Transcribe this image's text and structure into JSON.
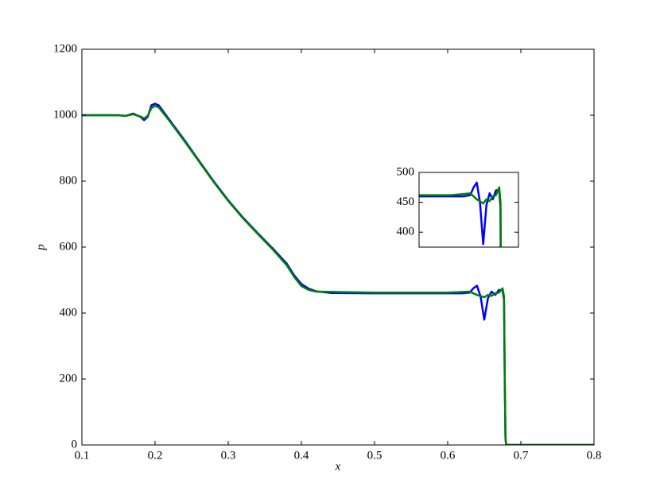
{
  "chart_data": {
    "type": "line",
    "xlabel": "x",
    "ylabel": "p",
    "xlim": [
      0.1,
      0.8
    ],
    "xticks": [
      0.1,
      0.2,
      0.3,
      0.4,
      0.5,
      0.6,
      0.7,
      0.8
    ],
    "ylim": [
      0,
      1200
    ],
    "yticks": [
      0,
      200,
      400,
      600,
      800,
      1000,
      1200
    ],
    "grid": false,
    "series": [
      {
        "color": "#0000ff",
        "x": [
          0.1,
          0.15,
          0.16,
          0.17,
          0.18,
          0.185,
          0.19,
          0.195,
          0.2,
          0.205,
          0.21,
          0.22,
          0.24,
          0.26,
          0.28,
          0.3,
          0.32,
          0.34,
          0.36,
          0.38,
          0.39,
          0.4,
          0.41,
          0.42,
          0.44,
          0.5,
          0.6,
          0.62,
          0.63,
          0.635,
          0.64,
          0.645,
          0.65,
          0.655,
          0.66,
          0.665,
          0.67,
          0.675,
          0.677,
          0.678,
          0.679,
          0.68,
          0.8
        ],
        "values": [
          1000,
          1000,
          998,
          1005,
          995,
          985,
          995,
          1030,
          1035,
          1030,
          1015,
          985,
          925,
          862,
          800,
          742,
          690,
          643,
          598,
          550,
          515,
          488,
          474,
          466,
          461,
          460,
          460,
          460,
          462,
          475,
          483,
          450,
          380,
          445,
          465,
          455,
          470,
          470,
          440,
          200,
          20,
          0,
          0
        ]
      },
      {
        "color": "#008000",
        "x": [
          0.1,
          0.15,
          0.16,
          0.17,
          0.18,
          0.185,
          0.19,
          0.195,
          0.2,
          0.205,
          0.21,
          0.22,
          0.24,
          0.26,
          0.28,
          0.3,
          0.32,
          0.34,
          0.36,
          0.38,
          0.39,
          0.4,
          0.41,
          0.42,
          0.45,
          0.5,
          0.6,
          0.63,
          0.64,
          0.65,
          0.655,
          0.66,
          0.665,
          0.67,
          0.675,
          0.677,
          0.678,
          0.679,
          0.68,
          0.8
        ],
        "values": [
          1000,
          1000,
          998,
          1003,
          996,
          990,
          998,
          1022,
          1028,
          1024,
          1010,
          982,
          922,
          860,
          798,
          740,
          688,
          641,
          595,
          545,
          510,
          482,
          470,
          465,
          464,
          462,
          462,
          465,
          455,
          448,
          455,
          452,
          460,
          462,
          475,
          450,
          200,
          20,
          0,
          0
        ]
      }
    ],
    "inset": {
      "xlim": [
        0.55,
        0.705
      ],
      "ylim": [
        375,
        500
      ],
      "yticks": [
        400,
        450,
        500
      ]
    }
  }
}
